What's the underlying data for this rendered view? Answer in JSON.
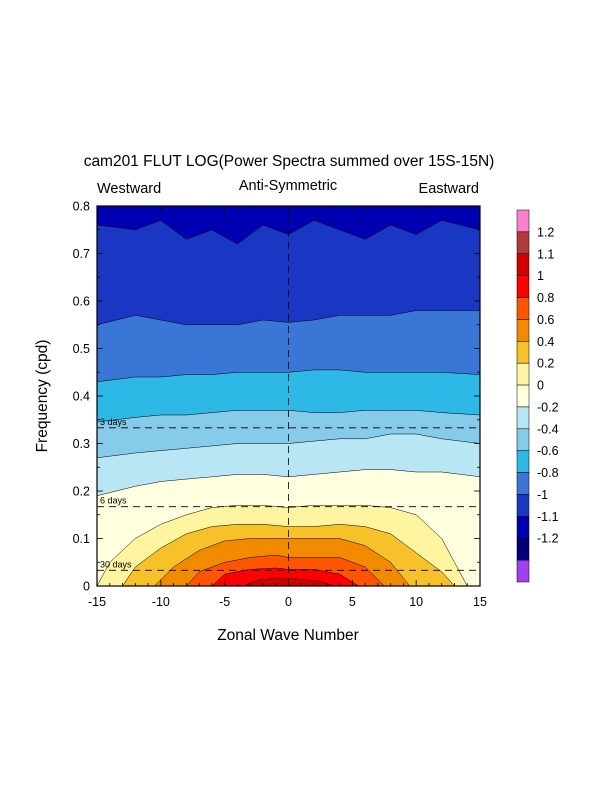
{
  "chart_data": {
    "type": "heatmap",
    "title": "cam201 FLUT LOG(Power Spectra summed over 15S-15N)",
    "left_label": "Westward",
    "center_label": "Anti-Symmetric",
    "right_label": "Eastward",
    "xlabel": "Zonal Wave Number",
    "ylabel": "Frequency (cpd)",
    "xlim": [
      -15,
      15
    ],
    "ylim": [
      0,
      0.8
    ],
    "x_ticks": [
      -15,
      -10,
      -5,
      0,
      5,
      10,
      15
    ],
    "y_ticks": [
      0,
      0.1,
      0.2,
      0.3,
      0.4,
      0.5,
      0.6,
      0.7,
      0.8
    ],
    "y_tick_labels": [
      "0",
      "0.1",
      "0.2",
      "0.3",
      "0.4",
      "0.5",
      "0.6",
      "0.7",
      "0.8"
    ],
    "period_lines": [
      {
        "label": "3 days",
        "frequency": 0.333
      },
      {
        "label": "6 days",
        "frequency": 0.167
      },
      {
        "label": "30 days",
        "frequency": 0.033
      }
    ],
    "colorbar": {
      "labels": [
        "1.2",
        "1.1",
        "1",
        "0.8",
        "0.6",
        "0.4",
        "0.2",
        "0",
        "-0.2",
        "-0.4",
        "-0.6",
        "-0.8",
        "-1",
        "-1.1",
        "-1.2"
      ],
      "colors": [
        "#ff7fcf",
        "#b33a3a",
        "#d40000",
        "#ff0000",
        "#ff5500",
        "#f28a00",
        "#f7c229",
        "#fff4a0",
        "#ffffe0",
        "#b8e6f5",
        "#87cbea",
        "#2eb8e6",
        "#3a76d6",
        "#1a37c4",
        "#0000b3",
        "#00007a",
        "#a040f0"
      ]
    },
    "levels": [
      -1.1,
      -1,
      -0.8,
      -0.6,
      -0.4,
      -0.2,
      0,
      0.2,
      0.4,
      0.6,
      0.8,
      1
    ],
    "level_colors": [
      "#0000b3",
      "#1a37c4",
      "#3a76d6",
      "#2eb8e6",
      "#87cbea",
      "#b8e6f5",
      "#ffffe0",
      "#fff4a0",
      "#f7c229",
      "#f28a00",
      "#ff5500",
      "#ff0000",
      "#d40000"
    ],
    "contours": [
      {
        "level": -1.1,
        "x": [
          -15,
          -12,
          -10,
          -8,
          -6,
          -4,
          -2,
          0,
          2,
          4,
          6,
          8,
          10,
          12,
          15
        ],
        "y": [
          0.76,
          0.75,
          0.77,
          0.73,
          0.75,
          0.72,
          0.76,
          0.74,
          0.77,
          0.75,
          0.73,
          0.76,
          0.74,
          0.77,
          0.75
        ]
      },
      {
        "level": -1,
        "x": [
          -15,
          -12,
          -10,
          -8,
          -6,
          -4,
          -2,
          0,
          2,
          4,
          6,
          8,
          10,
          12,
          15
        ],
        "y": [
          0.55,
          0.57,
          0.56,
          0.55,
          0.55,
          0.55,
          0.56,
          0.555,
          0.56,
          0.57,
          0.57,
          0.57,
          0.58,
          0.58,
          0.58
        ]
      },
      {
        "level": -0.8,
        "x": [
          -15,
          -12,
          -10,
          -8,
          -6,
          -4,
          -2,
          0,
          2,
          4,
          6,
          8,
          10,
          12,
          15
        ],
        "y": [
          0.43,
          0.44,
          0.44,
          0.445,
          0.445,
          0.45,
          0.45,
          0.45,
          0.455,
          0.455,
          0.45,
          0.45,
          0.45,
          0.45,
          0.445
        ]
      },
      {
        "level": -0.6,
        "x": [
          -15,
          -12,
          -10,
          -8,
          -6,
          -4,
          -2,
          0,
          2,
          4,
          6,
          8,
          10,
          12,
          15
        ],
        "y": [
          0.345,
          0.355,
          0.36,
          0.36,
          0.365,
          0.37,
          0.37,
          0.37,
          0.365,
          0.365,
          0.37,
          0.37,
          0.37,
          0.365,
          0.36
        ]
      },
      {
        "level": -0.4,
        "x": [
          -15,
          -12,
          -10,
          -8,
          -6,
          -4,
          -2,
          0,
          2,
          4,
          6,
          8,
          10,
          12,
          15
        ],
        "y": [
          0.27,
          0.28,
          0.285,
          0.29,
          0.295,
          0.3,
          0.3,
          0.3,
          0.305,
          0.31,
          0.31,
          0.32,
          0.32,
          0.31,
          0.3
        ]
      },
      {
        "level": -0.2,
        "x": [
          -15,
          -12,
          -10,
          -8,
          -6,
          -4,
          -2,
          0,
          2,
          4,
          6,
          8,
          10,
          12,
          15
        ],
        "y": [
          0.19,
          0.21,
          0.22,
          0.225,
          0.23,
          0.235,
          0.235,
          0.23,
          0.235,
          0.24,
          0.245,
          0.245,
          0.24,
          0.24,
          0.23
        ]
      },
      {
        "level": 0,
        "x": [
          -15,
          -14,
          -12,
          -10,
          -8,
          -6,
          -4,
          -2,
          0,
          2,
          4,
          6,
          8,
          10,
          12,
          13,
          14
        ],
        "y": [
          0,
          0.05,
          0.1,
          0.13,
          0.15,
          0.165,
          0.17,
          0.17,
          0.165,
          0.17,
          0.17,
          0.17,
          0.165,
          0.15,
          0.1,
          0.05,
          0
        ]
      },
      {
        "level": 0.2,
        "x": [
          -13,
          -12,
          -10,
          -8,
          -6,
          -4,
          -2,
          0,
          2,
          4,
          6,
          8,
          10,
          12,
          13
        ],
        "y": [
          0,
          0.04,
          0.08,
          0.11,
          0.125,
          0.13,
          0.13,
          0.125,
          0.125,
          0.13,
          0.125,
          0.11,
          0.07,
          0.03,
          0
        ]
      },
      {
        "level": 0.4,
        "x": [
          -10.5,
          -9,
          -7,
          -5,
          -3,
          -1,
          0,
          2,
          4,
          6,
          8,
          9.5
        ],
        "y": [
          0,
          0.04,
          0.075,
          0.095,
          0.1,
          0.1,
          0.1,
          0.1,
          0.1,
          0.085,
          0.05,
          0
        ]
      },
      {
        "level": 0.6,
        "x": [
          -8,
          -7,
          -5,
          -3,
          -1,
          0,
          2,
          4,
          6,
          7.5
        ],
        "y": [
          0,
          0.03,
          0.05,
          0.06,
          0.065,
          0.06,
          0.06,
          0.06,
          0.04,
          0
        ]
      },
      {
        "level": 0.8,
        "x": [
          -6,
          -5,
          -3,
          -1,
          0,
          2,
          4,
          5.5
        ],
        "y": [
          0,
          0.025,
          0.035,
          0.038,
          0.035,
          0.035,
          0.025,
          0
        ]
      },
      {
        "level": 1,
        "x": [
          -3.5,
          -2.5,
          -1,
          0,
          1,
          2.5,
          3.5
        ],
        "y": [
          0,
          0.012,
          0.016,
          0.016,
          0.014,
          0.01,
          0
        ]
      }
    ]
  }
}
